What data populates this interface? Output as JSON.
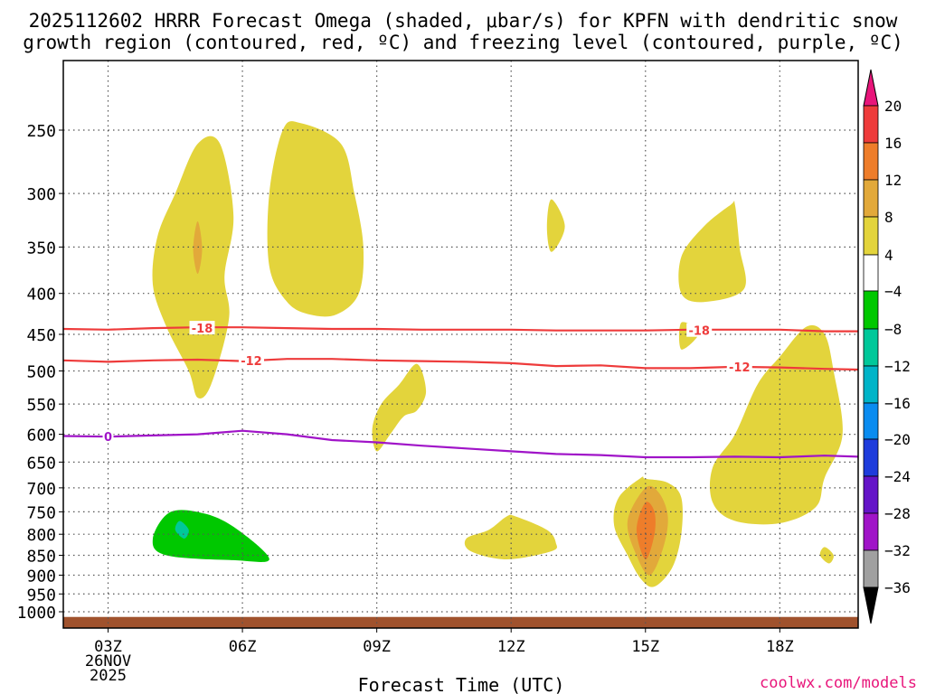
{
  "chart_data": {
    "type": "heatmap",
    "title_line1": "2025112602 HRRR Forecast Omega (shaded, μbar/s) for KPFN with dendritic snow",
    "title_line2": "growth region (contoured, red, ºC) and freezing level (contoured, purple, ºC)",
    "xlabel": "Forecast Time (UTC)",
    "watermark": "coolwx.com/models",
    "x_range_hours": [
      2,
      19.75
    ],
    "p_range_hpa": [
      1000,
      200
    ],
    "x_ticks": [
      {
        "hour": 3,
        "label": "03Z",
        "date": "26NOV",
        "year": "2025"
      },
      {
        "hour": 6,
        "label": "06Z"
      },
      {
        "hour": 9,
        "label": "09Z"
      },
      {
        "hour": 12,
        "label": "12Z"
      },
      {
        "hour": 15,
        "label": "15Z"
      },
      {
        "hour": 18,
        "label": "18Z"
      }
    ],
    "y_ticks": [
      250,
      300,
      350,
      400,
      450,
      500,
      550,
      600,
      650,
      700,
      750,
      800,
      850,
      900,
      950,
      1000
    ],
    "colorbar": {
      "labels": [
        "20",
        "16",
        "12",
        "8",
        "4",
        "−4",
        "−8",
        "−12",
        "−16",
        "−20",
        "−24",
        "−28",
        "−32",
        "−36"
      ],
      "bins": [
        {
          "from": 20,
          "to": 24,
          "color": "#e8157a"
        },
        {
          "from": 16,
          "to": 20,
          "color": "#ee3b3b"
        },
        {
          "from": 12,
          "to": 16,
          "color": "#ee7d2a"
        },
        {
          "from": 8,
          "to": 12,
          "color": "#e2a93a"
        },
        {
          "from": 4,
          "to": 8,
          "color": "#e3d43c"
        },
        {
          "from": -4,
          "to": 4,
          "color": "#ffffff"
        },
        {
          "from": -8,
          "to": -4,
          "color": "#00c800"
        },
        {
          "from": -12,
          "to": -8,
          "color": "#00c89a"
        },
        {
          "from": -16,
          "to": -12,
          "color": "#00b4c8"
        },
        {
          "from": -20,
          "to": -16,
          "color": "#0a8cf0"
        },
        {
          "from": -24,
          "to": -20,
          "color": "#1e3cdc"
        },
        {
          "from": -28,
          "to": -24,
          "color": "#6414c8"
        },
        {
          "from": -32,
          "to": -28,
          "color": "#a014c8"
        },
        {
          "from": -36,
          "to": -32,
          "color": "#a0a0a0"
        },
        {
          "from": -40,
          "to": -36,
          "color": "#000000"
        }
      ]
    },
    "contours": [
      {
        "name": "-18C",
        "label": "-18",
        "color": "#ee3b3b",
        "points": [
          [
            2,
            443
          ],
          [
            3,
            444
          ],
          [
            4,
            442
          ],
          [
            5,
            441
          ],
          [
            6,
            441
          ],
          [
            7,
            442
          ],
          [
            8,
            443
          ],
          [
            9,
            443
          ],
          [
            10,
            444
          ],
          [
            11,
            444
          ],
          [
            12,
            444
          ],
          [
            13,
            445
          ],
          [
            14,
            445
          ],
          [
            15,
            445
          ],
          [
            16,
            444
          ],
          [
            17,
            444
          ],
          [
            18,
            444
          ],
          [
            19,
            446
          ],
          [
            19.75,
            446
          ]
        ],
        "label_at": [
          [
            5.1,
            442
          ],
          [
            16.2,
            445
          ]
        ]
      },
      {
        "name": "-12C",
        "label": "-12",
        "color": "#ee3b3b",
        "points": [
          [
            2,
            485
          ],
          [
            3,
            487
          ],
          [
            4,
            485
          ],
          [
            5,
            484
          ],
          [
            6,
            486
          ],
          [
            7,
            483
          ],
          [
            8,
            483
          ],
          [
            9,
            485
          ],
          [
            10,
            486
          ],
          [
            11,
            487
          ],
          [
            12,
            489
          ],
          [
            13,
            493
          ],
          [
            14,
            492
          ],
          [
            15,
            496
          ],
          [
            16,
            496
          ],
          [
            17,
            494
          ],
          [
            18,
            495
          ],
          [
            19,
            497
          ],
          [
            19.75,
            498
          ]
        ],
        "label_at": [
          [
            6.2,
            485
          ],
          [
            17.1,
            494
          ]
        ]
      },
      {
        "name": "0C",
        "label": "0",
        "color": "#a014c8",
        "points": [
          [
            2,
            603
          ],
          [
            3,
            604
          ],
          [
            4,
            602
          ],
          [
            5,
            600
          ],
          [
            6,
            594
          ],
          [
            7,
            600
          ],
          [
            8,
            610
          ],
          [
            9,
            614
          ],
          [
            10,
            620
          ],
          [
            11,
            625
          ],
          [
            12,
            630
          ],
          [
            13,
            635
          ],
          [
            14,
            637
          ],
          [
            15,
            641
          ],
          [
            16,
            641
          ],
          [
            17,
            640
          ],
          [
            18,
            641
          ],
          [
            19,
            638
          ],
          [
            19.75,
            640
          ]
        ],
        "label_at": [
          [
            3,
            604
          ]
        ]
      }
    ],
    "shaded_regions": [
      {
        "value": 4,
        "points": [
          [
            5.0,
            260
          ],
          [
            4.5,
            300
          ],
          [
            4.1,
            340
          ],
          [
            4.0,
            390
          ],
          [
            4.3,
            440
          ],
          [
            4.8,
            500
          ],
          [
            5.0,
            540
          ],
          [
            5.3,
            520
          ],
          [
            5.7,
            430
          ],
          [
            5.6,
            380
          ],
          [
            5.8,
            320
          ],
          [
            5.5,
            260
          ]
        ]
      },
      {
        "value": 8,
        "points": [
          [
            5.0,
            325
          ],
          [
            4.9,
            352
          ],
          [
            5.0,
            378
          ],
          [
            5.1,
            352
          ]
        ]
      },
      {
        "value": 4,
        "points": [
          [
            6.9,
            250
          ],
          [
            6.6,
            300
          ],
          [
            6.6,
            370
          ],
          [
            7.0,
            410
          ],
          [
            7.5,
            425
          ],
          [
            8.1,
            425
          ],
          [
            8.6,
            400
          ],
          [
            8.7,
            350
          ],
          [
            8.5,
            300
          ],
          [
            8.2,
            260
          ],
          [
            7.3,
            245
          ]
        ]
      },
      {
        "value": 4,
        "points": [
          [
            9.9,
            490
          ],
          [
            9.5,
            520
          ],
          [
            9.1,
            550
          ],
          [
            8.9,
            590
          ],
          [
            9.0,
            630
          ],
          [
            9.3,
            600
          ],
          [
            9.6,
            570
          ],
          [
            9.9,
            560
          ],
          [
            10.1,
            530
          ]
        ]
      },
      {
        "value": 4,
        "points": [
          [
            12.9,
            305
          ],
          [
            12.8,
            330
          ],
          [
            12.9,
            355
          ],
          [
            13.2,
            330
          ]
        ]
      },
      {
        "value": 4,
        "points": [
          [
            16.9,
            310
          ],
          [
            16.3,
            330
          ],
          [
            15.8,
            360
          ],
          [
            15.8,
            400
          ],
          [
            16.3,
            410
          ],
          [
            17.2,
            395
          ],
          [
            17.1,
            350
          ],
          [
            17.0,
            310
          ]
        ]
      },
      {
        "value": 4,
        "points": [
          [
            15.8,
            435
          ],
          [
            15.8,
            470
          ],
          [
            16.2,
            448
          ]
        ]
      },
      {
        "value": 4,
        "points": [
          [
            18.6,
            440
          ],
          [
            18.0,
            480
          ],
          [
            17.5,
            520
          ],
          [
            17.0,
            600
          ],
          [
            16.5,
            660
          ],
          [
            16.5,
            730
          ],
          [
            17.0,
            770
          ],
          [
            18.0,
            775
          ],
          [
            18.8,
            740
          ],
          [
            19.0,
            680
          ],
          [
            19.4,
            600
          ],
          [
            19.2,
            500
          ],
          [
            19.0,
            450
          ]
        ]
      },
      {
        "value": 4,
        "points": [
          [
            19.0,
            830
          ],
          [
            18.9,
            850
          ],
          [
            19.1,
            870
          ],
          [
            19.2,
            850
          ]
        ]
      },
      {
        "value": 4,
        "points": [
          [
            11.9,
            760
          ],
          [
            11.5,
            790
          ],
          [
            11.0,
            810
          ],
          [
            11.1,
            840
          ],
          [
            11.9,
            860
          ],
          [
            12.9,
            840
          ],
          [
            13.0,
            820
          ],
          [
            12.8,
            790
          ],
          [
            12.1,
            760
          ]
        ]
      },
      {
        "value": 4,
        "points": [
          [
            14.9,
            680
          ],
          [
            14.4,
            720
          ],
          [
            14.3,
            780
          ],
          [
            14.6,
            850
          ],
          [
            14.9,
            910
          ],
          [
            15.2,
            930
          ],
          [
            15.6,
            880
          ],
          [
            15.8,
            800
          ],
          [
            15.8,
            720
          ],
          [
            15.5,
            690
          ],
          [
            15.0,
            682
          ]
        ]
      },
      {
        "value": 8,
        "points": [
          [
            15.0,
            700
          ],
          [
            14.6,
            770
          ],
          [
            14.8,
            850
          ],
          [
            15.1,
            900
          ],
          [
            15.4,
            830
          ],
          [
            15.5,
            760
          ],
          [
            15.3,
            710
          ]
        ]
      },
      {
        "value": 12,
        "points": [
          [
            15.0,
            730
          ],
          [
            14.8,
            790
          ],
          [
            15.0,
            860
          ],
          [
            15.2,
            800
          ],
          [
            15.2,
            750
          ]
        ]
      },
      {
        "value": -4,
        "points": [
          [
            3.0,
            420
          ],
          [
            2.6,
            460
          ],
          [
            2.6,
            520
          ],
          [
            2.9,
            570
          ],
          [
            3.2,
            580
          ],
          [
            3.4,
            530
          ],
          [
            3.3,
            460
          ]
        ]
      },
      {
        "value": -4,
        "points": [
          [
            18.1,
            260
          ],
          [
            18.1,
            330
          ],
          [
            18.3,
            350
          ],
          [
            18.6,
            320
          ],
          [
            18.6,
            270
          ],
          [
            18.4,
            230
          ],
          [
            18.3,
            200
          ],
          [
            18.1,
            215
          ]
        ]
      },
      {
        "value": -4,
        "points": [
          [
            11.0,
            270
          ],
          [
            10.6,
            300
          ],
          [
            10.6,
            380
          ],
          [
            10.9,
            450
          ],
          [
            10.9,
            510
          ],
          [
            11.1,
            560
          ],
          [
            11.6,
            540
          ],
          [
            11.8,
            450
          ],
          [
            11.7,
            340
          ],
          [
            11.3,
            280
          ]
        ]
      },
      {
        "value": -4,
        "points": [
          [
            12.6,
            490
          ],
          [
            12.4,
            520
          ],
          [
            12.5,
            580
          ],
          [
            12.9,
            660
          ],
          [
            13.1,
            610
          ],
          [
            13.0,
            530
          ],
          [
            12.9,
            490
          ]
        ]
      },
      {
        "value": -4,
        "points": [
          [
            15.0,
            360
          ],
          [
            14.8,
            400
          ],
          [
            14.8,
            500
          ],
          [
            14.9,
            580
          ],
          [
            15.1,
            590
          ],
          [
            15.2,
            500
          ],
          [
            15.2,
            400
          ]
        ]
      },
      {
        "value": -4,
        "points": [
          [
            19.75,
            590
          ],
          [
            19.5,
            650
          ],
          [
            19.6,
            750
          ],
          [
            19.75,
            790
          ]
        ]
      },
      {
        "value": -4,
        "points": [
          [
            7.0,
            560
          ],
          [
            6.4,
            620
          ],
          [
            5.4,
            660
          ],
          [
            4.3,
            680
          ],
          [
            3.4,
            760
          ],
          [
            3.4,
            820
          ],
          [
            3.8,
            880
          ],
          [
            5.0,
            925
          ],
          [
            6.4,
            945
          ],
          [
            7.3,
            940
          ],
          [
            7.9,
            925
          ],
          [
            7.5,
            870
          ],
          [
            7.1,
            760
          ],
          [
            7.3,
            660
          ],
          [
            7.4,
            580
          ]
        ]
      },
      {
        "value": -8,
        "points": [
          [
            4.4,
            750
          ],
          [
            4.0,
            810
          ],
          [
            4.3,
            850
          ],
          [
            5.8,
            862
          ],
          [
            6.6,
            860
          ],
          [
            5.9,
            790
          ],
          [
            5.2,
            755
          ]
        ]
      },
      {
        "value": -12,
        "points": [
          [
            4.6,
            770
          ],
          [
            4.5,
            790
          ],
          [
            4.7,
            810
          ],
          [
            4.8,
            790
          ]
        ]
      },
      {
        "value": -4,
        "points": [
          [
            10.4,
            880
          ],
          [
            10.1,
            950
          ],
          [
            10.2,
            975
          ],
          [
            11.2,
            985
          ],
          [
            12.0,
            990
          ],
          [
            12.9,
            985
          ],
          [
            13.8,
            960
          ],
          [
            14.3,
            920
          ],
          [
            13.9,
            895
          ],
          [
            13.0,
            905
          ],
          [
            12.1,
            955
          ],
          [
            11.4,
            940
          ],
          [
            10.6,
            900
          ]
        ]
      },
      {
        "value": -4,
        "points": [
          [
            17.0,
            967
          ],
          [
            17.0,
            985
          ],
          [
            18.0,
            985
          ],
          [
            18.0,
            967
          ]
        ]
      }
    ],
    "ground_from_hpa": 1015
  }
}
